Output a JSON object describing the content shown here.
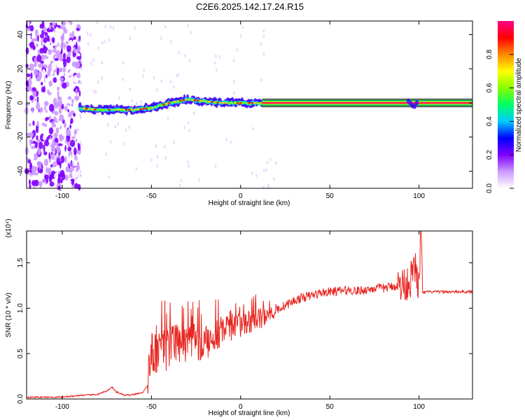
{
  "title": "C2E6.2025.142.17.24.R15",
  "chart_data": [
    {
      "type": "heatmap",
      "xlabel": "Height of straight line (km)",
      "ylabel": "Frequency (Hz)",
      "xlim": [
        -120,
        130
      ],
      "ylim": [
        -50,
        48
      ],
      "xticks": [
        "-100",
        "-50",
        "0",
        "50",
        "100"
      ],
      "yticks": [
        "-40",
        "-20",
        "0",
        "20",
        "40"
      ],
      "colorbar": {
        "label": "Normalized spectral amplitude",
        "range": [
          0.0,
          1.0
        ],
        "ticks": [
          "0.0",
          "0.2",
          "0.4",
          "0.6",
          "0.8"
        ],
        "colors": [
          "#ffffff",
          "#cc99ff",
          "#8000ff",
          "#0000ff",
          "#00ccff",
          "#00ff66",
          "#88ff00",
          "#ffff00",
          "#ff8800",
          "#ff0000",
          "#ff0088"
        ]
      },
      "ridge": {
        "x": [
          -90,
          -80,
          -70,
          -60,
          -50,
          -40,
          -30,
          -20,
          -10,
          0,
          10,
          20,
          50,
          95,
          98,
          100,
          130
        ],
        "y": [
          -3,
          -4,
          -4,
          -4,
          -3,
          0,
          2,
          1,
          0,
          0,
          0,
          0,
          0,
          0,
          -1,
          0,
          0
        ]
      },
      "noise_region": {
        "x": [
          -120,
          -90
        ],
        "y": [
          -50,
          48
        ]
      }
    },
    {
      "type": "line",
      "xlabel": "Height of straight line (km)",
      "ylabel": "SNR (10 * v/v)",
      "multiplier": "(x10⁴)",
      "xlim": [
        -120,
        130
      ],
      "ylim": [
        0,
        1.85
      ],
      "xticks": [
        "-100",
        "-50",
        "0",
        "50",
        "100"
      ],
      "yticks": [
        "0.0",
        "0.5",
        "1.0",
        "1.5"
      ],
      "color": "#e8251f",
      "series": [
        {
          "x": [
            -120,
            -100,
            -90,
            -80,
            -75,
            -72,
            -70,
            -65,
            -60,
            -55,
            -52,
            -50,
            -45,
            -40,
            -35,
            -30,
            -25,
            -20,
            -15,
            -10,
            -5,
            0,
            5,
            10,
            15,
            20,
            25,
            30,
            35,
            40,
            45,
            50,
            55,
            60,
            65,
            70,
            75,
            80,
            85,
            90,
            95,
            98,
            100,
            101,
            102,
            105,
            110,
            120,
            130
          ],
          "y": [
            0.02,
            0.02,
            0.04,
            0.05,
            0.09,
            0.13,
            0.08,
            0.04,
            0.05,
            0.07,
            0.15,
            0.45,
            0.5,
            0.55,
            0.6,
            0.6,
            0.62,
            0.6,
            0.7,
            0.75,
            0.8,
            0.82,
            0.85,
            0.88,
            0.92,
            0.98,
            1.03,
            1.08,
            1.12,
            1.14,
            1.17,
            1.18,
            1.19,
            1.2,
            1.19,
            1.2,
            1.22,
            1.22,
            1.24,
            1.25,
            1.3,
            1.45,
            1.2,
            1.85,
            1.17,
            1.18,
            1.18,
            1.18,
            1.18
          ]
        }
      ]
    }
  ]
}
